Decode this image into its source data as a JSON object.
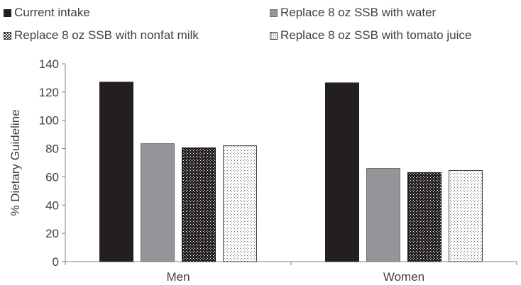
{
  "chart_data": {
    "type": "bar",
    "title": "",
    "xlabel": "",
    "ylabel": "% Dietary Guideline",
    "categories": [
      "Men",
      "Women"
    ],
    "ylim": [
      0,
      140
    ],
    "yticks": [
      0,
      20,
      40,
      60,
      80,
      100,
      120,
      140
    ],
    "grid": false,
    "legend_position": "top",
    "series": [
      {
        "name": "Current intake",
        "values": [
          127,
          126.5
        ],
        "color": "#231f20"
      },
      {
        "name": "Replace 8 oz SSB with water",
        "values": [
          83.5,
          66
        ],
        "color": "#939598"
      },
      {
        "name": "Replace 8 oz SSB with nonfat milk",
        "values": [
          80.5,
          63
        ],
        "color": "#231f20"
      },
      {
        "name": "Replace 8 oz SSB with tomato juice",
        "values": [
          82,
          64.5
        ],
        "color": "#ffffff"
      }
    ]
  }
}
